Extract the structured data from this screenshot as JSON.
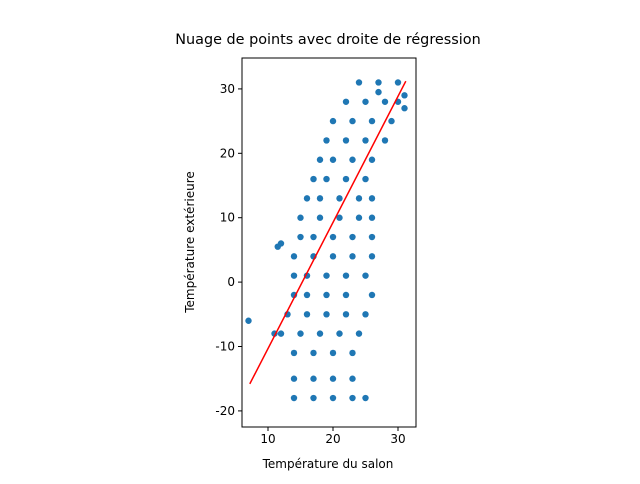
{
  "chart_data": {
    "type": "scatter",
    "title": "Nuage de points avec droite de régression",
    "xlabel": "Température du salon",
    "ylabel": "Température extérieure",
    "color": "#1f77b4",
    "x": [
      24,
      27,
      30,
      22,
      25,
      28,
      30,
      20,
      23,
      26,
      29,
      19,
      22,
      25,
      28,
      18,
      20,
      23,
      26,
      17,
      19,
      22,
      25,
      16,
      18,
      21,
      24,
      26,
      15,
      18,
      21,
      24,
      26,
      15,
      17,
      20,
      23,
      26,
      14,
      17,
      20,
      23,
      26,
      14,
      16,
      19,
      22,
      25,
      14,
      16,
      19,
      22,
      26,
      13,
      16,
      19,
      22,
      25,
      12,
      15,
      18,
      21,
      24,
      14,
      17,
      20,
      23,
      14,
      17,
      20,
      23,
      14,
      17,
      20,
      23,
      25,
      7,
      11.5,
      12,
      11,
      27,
      31,
      31
    ],
    "values": [
      31,
      31,
      31,
      28,
      28,
      28,
      28,
      25,
      25,
      25,
      25,
      22,
      22,
      22,
      22,
      19,
      19,
      19,
      19,
      16,
      16,
      16,
      16,
      13,
      13,
      13,
      13,
      13,
      10,
      10,
      10,
      10,
      10,
      7,
      7,
      7,
      7,
      7,
      4,
      4,
      4,
      4,
      4,
      1,
      1,
      1,
      1,
      1,
      -2,
      -2,
      -2,
      -2,
      -2,
      -5,
      -5,
      -5,
      -5,
      -5,
      -8,
      -8,
      -8,
      -8,
      -8,
      -11,
      -11,
      -11,
      -11,
      -15,
      -15,
      -15,
      -15,
      -18,
      -18,
      -18,
      -18,
      -18,
      -6,
      5.5,
      6,
      -8,
      29.5,
      29,
      27
    ],
    "fit": {
      "type": "line",
      "color": "#ff0000",
      "x": [
        7.2,
        31.2
      ],
      "values": [
        -15.8,
        31.2
      ]
    },
    "xlim": [
      6.0,
      32.77
    ],
    "ylim": [
      -22.5,
      34.8
    ],
    "xticks": [
      10,
      20,
      30
    ],
    "yticks": [
      -20,
      -10,
      0,
      10,
      20,
      30
    ]
  }
}
